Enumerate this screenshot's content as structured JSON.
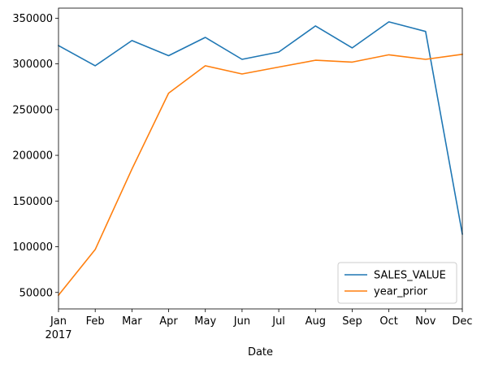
{
  "chart_data": {
    "type": "line",
    "title": "",
    "xlabel": "Date",
    "ylabel": "",
    "x": [
      "Jan",
      "Feb",
      "Mar",
      "Apr",
      "May",
      "Jun",
      "Jul",
      "Aug",
      "Sep",
      "Oct",
      "Nov",
      "Dec"
    ],
    "x_year_label": "2017",
    "ylim": [
      32000,
      361000
    ],
    "yticks": [
      50000,
      100000,
      150000,
      200000,
      250000,
      300000,
      350000
    ],
    "grid": false,
    "legend_position": "lower-right",
    "series": [
      {
        "name": "SALES_VALUE",
        "color": "#1f77b4",
        "values": [
          320000,
          298000,
          325500,
          309000,
          329000,
          305000,
          313000,
          341500,
          317500,
          346000,
          335500,
          114000
        ]
      },
      {
        "name": "year_prior",
        "color": "#ff7f0e",
        "values": [
          47000,
          97000,
          185000,
          268000,
          298000,
          289000,
          296500,
          304000,
          302000,
          310000,
          305000,
          310500
        ]
      }
    ]
  }
}
